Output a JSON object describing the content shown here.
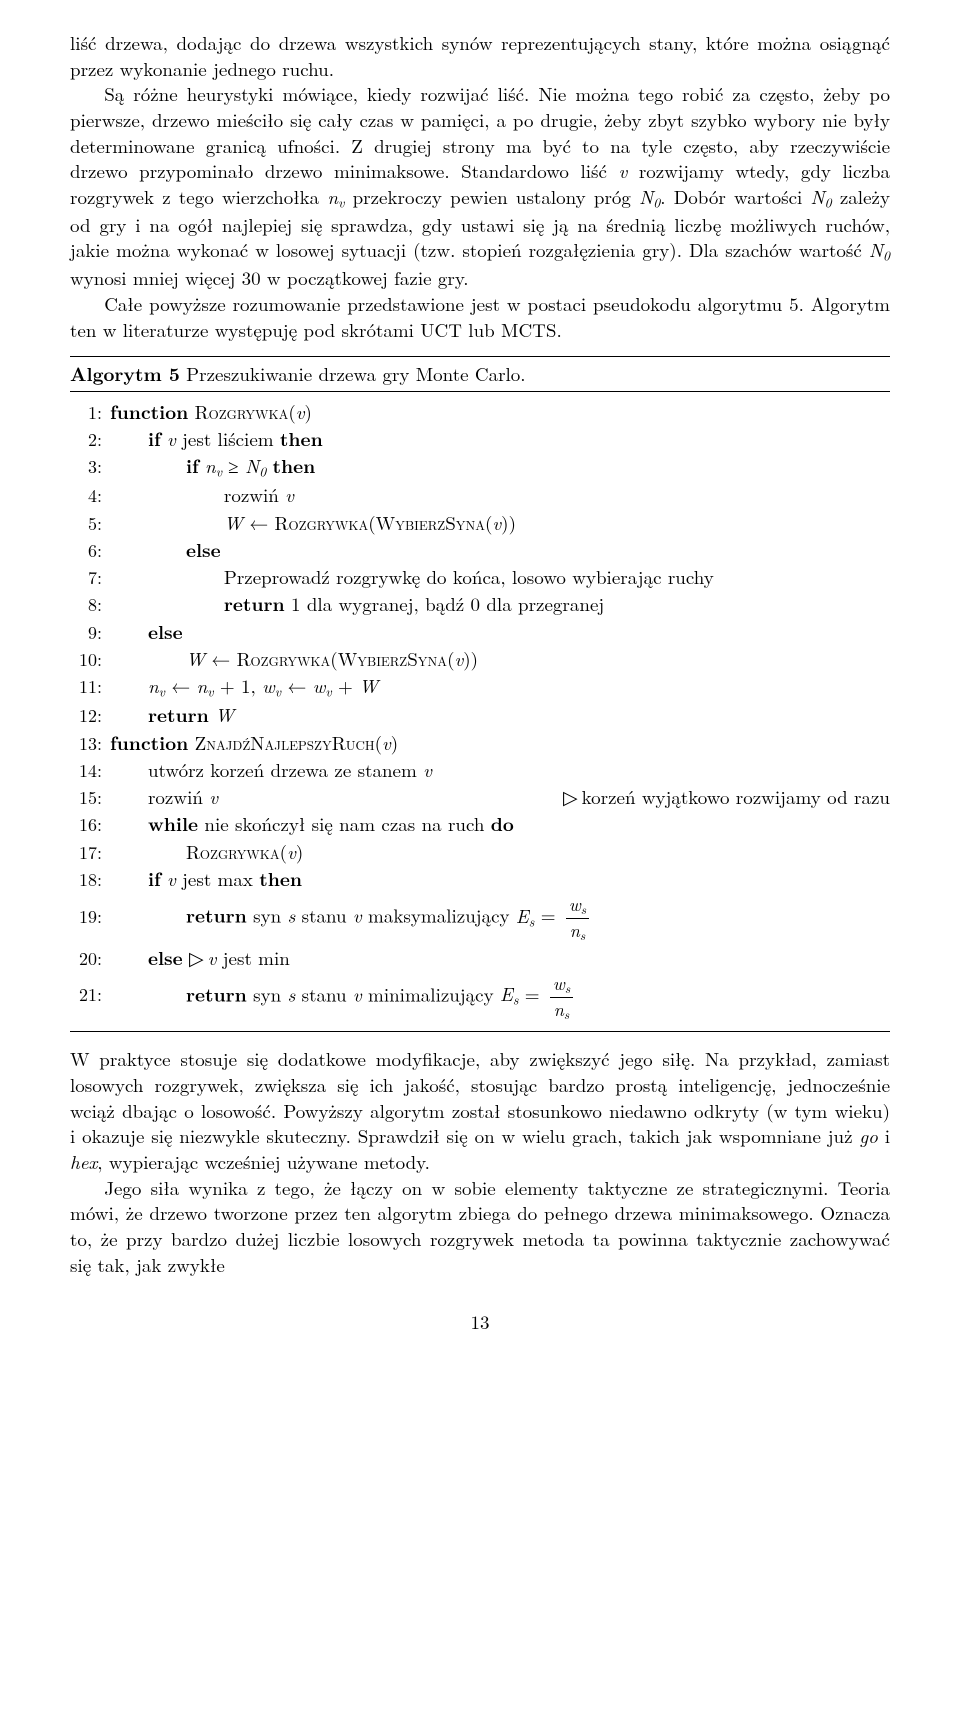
{
  "para1": "liść drzewa, dodając do drzewa wszystkich synów reprezentujących stany, które można osiągnąć przez wykonanie jednego ruchu.",
  "para2_a": "Są różne heurystyki mówiące, kiedy rozwijać liść. Nie można tego robić za często, żeby po pierwsze, drzewo mieściło się cały czas w pamięci, a po drugie, żeby zbyt szybko wybory nie były determinowane granicą ufności. Z drugiej strony ma być to na tyle często, aby rzeczywiście drzewo przypominało drzewo minimaksowe. Standardowo liść ",
  "para2_b": " rozwijamy wtedy, gdy liczba rozgrywek z tego wierzchołka ",
  "para2_c": " przekroczy pewien ustalony próg ",
  "para2_d": ". Dobór wartości ",
  "para2_e": " zależy od gry i na ogół najlepiej się sprawdza, gdy ustawi się ją na średnią liczbę możliwych ruchów, jakie można wykonać w losowej sytuacji (tzw. stopień rozgałęzienia gry). Dla szachów wartość ",
  "para2_f": " wynosi mniej więcej 30 w początkowej fazie gry.",
  "para3": "Całe powyższe rozumowanie przedstawione jest w postaci pseudokodu algorytmu 5. Algorytm ten w literaturze występuję pod skrótami UCT lub MCTS.",
  "algo": {
    "title_a": "Algorytm 5",
    "title_b": " Przeszukiwanie drzewa gry Monte Carlo.",
    "l1": {
      "n": "1:",
      "kw1": "function",
      "fn": "Rozgrywka",
      "arg": "v"
    },
    "l2": {
      "n": "2:",
      "kw1": "if",
      "txt": " jest liściem ",
      "kw2": "then"
    },
    "l3": {
      "n": "3:",
      "kw1": "if",
      "kw2": "then"
    },
    "l4": {
      "n": "4:",
      "txt": "rozwiń "
    },
    "l5": {
      "n": "5:",
      "fn1": "Rozgrywka",
      "fn2": "WybierzSyna"
    },
    "l6": {
      "n": "6:",
      "kw": "else"
    },
    "l7": {
      "n": "7:",
      "txt": "Przeprowadź rozgrywkę do końca, losowo wybierając ruchy"
    },
    "l8": {
      "n": "8:",
      "kw": "return",
      "txt": " 1 dla wygranej, bądź 0 dla przegranej"
    },
    "l9": {
      "n": "9:",
      "kw": "else"
    },
    "l10": {
      "n": "10:",
      "fn1": "Rozgrywka",
      "fn2": "WybierzSyna"
    },
    "l11": {
      "n": "11:"
    },
    "l12": {
      "n": "12:",
      "kw": "return"
    },
    "l13": {
      "n": "13:",
      "kw": "function",
      "fn": "ZnajdźNajlepszyRuch"
    },
    "l14": {
      "n": "14:",
      "txt": "utwórz korzeń drzewa ze stanem "
    },
    "l15": {
      "n": "15:",
      "txt": "rozwiń ",
      "comment": "korzeń wyjątkowo rozwijamy od razu"
    },
    "l16": {
      "n": "16:",
      "kw1": "while",
      "txt": " nie skończył się nam czas na ruch ",
      "kw2": "do"
    },
    "l17": {
      "n": "17:",
      "fn": "Rozgrywka"
    },
    "l18": {
      "n": "18:",
      "kw1": "if",
      "txt": " jest max ",
      "kw2": "then"
    },
    "l19": {
      "n": "19:",
      "kw": "return",
      "txt": " syn ",
      "txt2": " stanu ",
      "txt3": " maksymalizujący "
    },
    "l20": {
      "n": "20:",
      "kw": "else",
      "txt": " jest min"
    },
    "l21": {
      "n": "21:",
      "kw": "return",
      "txt": " syn ",
      "txt2": " stanu ",
      "txt3": " minimalizujący "
    }
  },
  "para4_a": "W praktyce stosuje się dodatkowe modyfikacje, aby zwiększyć jego siłę. Na przykład, zamiast losowych rozgrywek, zwiększa się ich jakość, stosując bardzo prostą inteligencję, jednocześnie wciąż dbając o losowość. Powyższy algorytm został stosunkowo niedawno odkryty (w tym wieku) i okazuje się niezwykle skuteczny. Sprawdził się on w wielu grach, takich jak wspomniane już ",
  "para4_b": " i ",
  "para4_c": ", wypierając wcześniej używane metody.",
  "para5": "Jego siła wynika z tego, że łączy on w sobie elementy taktyczne ze strategicznymi. Teoria mówi, że drzewo tworzone przez ten algorytm zbiega do pełnego drzewa minimaksowego. Oznacza to, że przy bardzo dużej liczbie losowych rozgrywek metoda ta powinna taktycznie zachowywać się tak, jak zwykłe",
  "pagenum": "13",
  "sym": {
    "v": "v",
    "nv": "n",
    "N0": "N",
    "W": "W",
    "wv": "w",
    "ws": "w",
    "ns": "n",
    "s": "s",
    "Es": "E",
    "go": "go",
    "hex": "hex"
  }
}
